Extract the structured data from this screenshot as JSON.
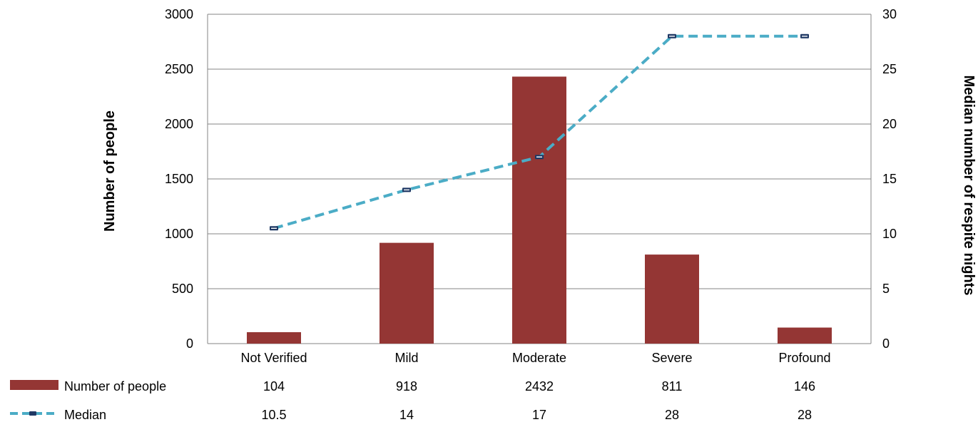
{
  "chart_data": {
    "type": "bar",
    "categories": [
      "Not Verified",
      "Mild",
      "Moderate",
      "Severe",
      "Profound"
    ],
    "series": [
      {
        "name": "Number of people",
        "type": "bar",
        "axis": "left",
        "values": [
          104,
          918,
          2432,
          811,
          146
        ],
        "value_labels": [
          "104",
          "918",
          "2432",
          "811",
          "146"
        ],
        "color": "#943634"
      },
      {
        "name": "Median",
        "type": "line",
        "axis": "right",
        "style": "dashed",
        "values": [
          10.5,
          14,
          17,
          28,
          28
        ],
        "value_labels": [
          "10.5",
          "14",
          "17",
          "28",
          "28"
        ],
        "color": "#4bacc6"
      }
    ],
    "ylabel": "Number of people",
    "y2label": "Median number of respite nights",
    "ylim": [
      0,
      3000
    ],
    "y2lim": [
      0,
      30
    ],
    "yticks": [
      "0",
      "500",
      "1000",
      "1500",
      "2000",
      "2500",
      "3000"
    ],
    "y2ticks": [
      "0",
      "5",
      "10",
      "15",
      "20",
      "25",
      "30"
    ],
    "grid": true,
    "legend": "data-table-bottom"
  }
}
